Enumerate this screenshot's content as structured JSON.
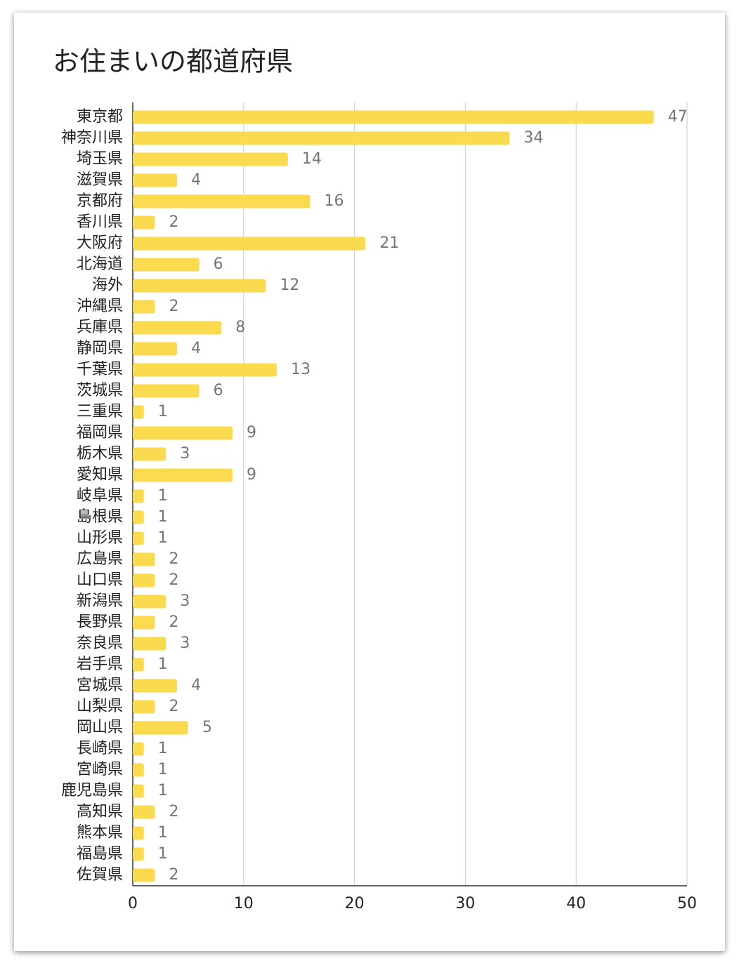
{
  "chart_data": {
    "type": "bar",
    "orientation": "horizontal",
    "title": "お住まいの都道府県",
    "categories": [
      "東京都",
      "神奈川県",
      "埼玉県",
      "滋賀県",
      "京都府",
      "香川県",
      "大阪府",
      "北海道",
      "海外",
      "沖縄県",
      "兵庫県",
      "静岡県",
      "千葉県",
      "茨城県",
      "三重県",
      "福岡県",
      "栃木県",
      "愛知県",
      "岐阜県",
      "島根県",
      "山形県",
      "広島県",
      "山口県",
      "新潟県",
      "長野県",
      "奈良県",
      "岩手県",
      "宮城県",
      "山梨県",
      "岡山県",
      "長崎県",
      "宮崎県",
      "鹿児島県",
      "高知県",
      "熊本県",
      "福島県",
      "佐賀県"
    ],
    "values": [
      47,
      34,
      14,
      4,
      16,
      2,
      21,
      6,
      12,
      2,
      8,
      4,
      13,
      6,
      1,
      9,
      3,
      9,
      1,
      1,
      1,
      2,
      2,
      3,
      2,
      3,
      1,
      4,
      2,
      5,
      1,
      1,
      1,
      2,
      1,
      1,
      2
    ],
    "color": "#fada4f",
    "xlim": [
      0,
      50
    ],
    "xticks": [
      0,
      10,
      20,
      30,
      40,
      50
    ],
    "grid": true
  }
}
